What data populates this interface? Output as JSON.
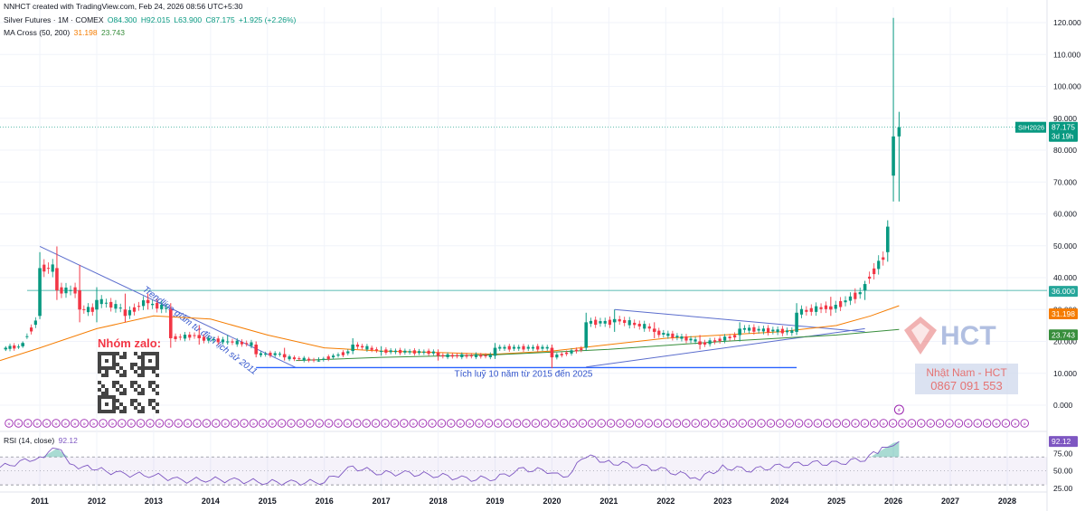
{
  "attribution": "NNHCT created with TradingView.com, Feb 24, 2026 08:56 UTC+5:30",
  "symbol_line": {
    "name": "Silver Futures · 1M · COMEX",
    "open": "O84.300",
    "high": "H92.015",
    "low": "L63.900",
    "close": "C87.175",
    "change": "+1.925 (+2.26%)"
  },
  "ma_line": {
    "name": "MA Cross (50, 200)",
    "ma50": "31.198",
    "ma200": "23.743"
  },
  "rsi_line": {
    "name": "RSI (14, close)",
    "value": "92.12"
  },
  "price_axis": {
    "ticks": [
      "120.000",
      "110.000",
      "100.000",
      "90.000",
      "80.000",
      "70.000",
      "60.000",
      "50.000",
      "40.000",
      "30.000",
      "20.000",
      "10.000",
      "0.000"
    ],
    "ticker_label": "SIH2026",
    "last_price": "87.175",
    "countdown": "3d 19h",
    "level_label": "36.000",
    "ma50_label": "31.198",
    "ma200_label": "23.743"
  },
  "rsi_axis": {
    "ticks": [
      "75.00",
      "50.00",
      "25.00"
    ],
    "value_label": "92.12"
  },
  "time_axis": [
    "2011",
    "2012",
    "2013",
    "2014",
    "2015",
    "2016",
    "2017",
    "2018",
    "2019",
    "2020",
    "2021",
    "2022",
    "2023",
    "2024",
    "2025",
    "2026",
    "2027",
    "2028"
  ],
  "annotations": {
    "trendline_text": "Trendline giảm từ đỉnh lịch sử 2011",
    "range_text": "Tích luỹ 10 năm từ 2015 đến 2025",
    "zalo_text": "Nhóm zalo:",
    "brand_name": "HCT",
    "contact_name": "Nhật Nam - HCT",
    "contact_phone": "0867 091 553"
  },
  "colors": {
    "up": "#089981",
    "down": "#f23645",
    "ma50": "#f57c00",
    "ma200": "#388e3c",
    "rsi": "#7e57c2",
    "level_line": "#26a69a",
    "annotation_blue": "#2962ff",
    "annotation_red": "#f23645"
  },
  "chart_data": {
    "type": "candlestick",
    "title": "Silver Futures · 1M · COMEX",
    "ylim": [
      0,
      122
    ],
    "x_range": [
      2010.3,
      2028.7
    ],
    "horizontal_level": 36,
    "series": [
      {
        "name": "Silver Futures",
        "ohlc_yearly_approx": [
          {
            "x": 2010.4,
            "o": 17.5,
            "h": 18.5,
            "l": 17,
            "c": 18
          },
          {
            "x": 2010.7,
            "o": 18.5,
            "h": 20,
            "l": 18,
            "c": 19.5
          },
          {
            "x": 2011.0,
            "o": 28,
            "h": 48,
            "l": 27,
            "c": 43
          },
          {
            "x": 2011.3,
            "o": 43,
            "h": 49.8,
            "l": 33,
            "c": 36
          },
          {
            "x": 2011.7,
            "o": 36,
            "h": 44,
            "l": 26,
            "c": 30
          },
          {
            "x": 2012.0,
            "o": 30,
            "h": 37,
            "l": 26,
            "c": 33
          },
          {
            "x": 2012.5,
            "o": 30,
            "h": 35,
            "l": 26,
            "c": 28
          },
          {
            "x": 2012.9,
            "o": 33,
            "h": 35,
            "l": 30,
            "c": 32
          },
          {
            "x": 2013.3,
            "o": 30,
            "h": 32,
            "l": 18,
            "c": 21
          },
          {
            "x": 2013.8,
            "o": 22,
            "h": 25,
            "l": 19,
            "c": 21
          },
          {
            "x": 2014.3,
            "o": 20,
            "h": 22,
            "l": 19,
            "c": 20
          },
          {
            "x": 2014.8,
            "o": 19,
            "h": 20,
            "l": 15,
            "c": 16
          },
          {
            "x": 2015.3,
            "o": 16,
            "h": 18,
            "l": 14,
            "c": 15
          },
          {
            "x": 2015.9,
            "o": 14,
            "h": 15,
            "l": 13.6,
            "c": 14
          },
          {
            "x": 2016.5,
            "o": 17,
            "h": 21,
            "l": 16,
            "c": 19
          },
          {
            "x": 2017.0,
            "o": 17,
            "h": 18.5,
            "l": 15.5,
            "c": 17
          },
          {
            "x": 2018.0,
            "o": 16.5,
            "h": 17.5,
            "l": 14,
            "c": 15.5
          },
          {
            "x": 2019.0,
            "o": 15.5,
            "h": 19.5,
            "l": 14.5,
            "c": 18
          },
          {
            "x": 2020.0,
            "o": 18,
            "h": 19,
            "l": 11.6,
            "c": 15
          },
          {
            "x": 2020.6,
            "o": 18,
            "h": 29,
            "l": 17,
            "c": 26
          },
          {
            "x": 2021.1,
            "o": 26,
            "h": 30,
            "l": 23,
            "c": 27
          },
          {
            "x": 2021.8,
            "o": 24,
            "h": 26,
            "l": 21,
            "c": 23
          },
          {
            "x": 2022.6,
            "o": 20,
            "h": 22,
            "l": 17.5,
            "c": 19
          },
          {
            "x": 2023.3,
            "o": 22,
            "h": 26,
            "l": 20,
            "c": 24
          },
          {
            "x": 2024.3,
            "o": 23,
            "h": 32,
            "l": 22,
            "c": 29
          },
          {
            "x": 2024.9,
            "o": 31,
            "h": 34,
            "l": 28,
            "c": 30
          },
          {
            "x": 2025.5,
            "o": 36,
            "h": 39,
            "l": 33,
            "c": 38
          },
          {
            "x": 2025.9,
            "o": 48,
            "h": 58,
            "l": 45,
            "c": 56
          },
          {
            "x": 2026.0,
            "o": 72,
            "h": 121.5,
            "l": 63.9,
            "c": 84.3
          },
          {
            "x": 2026.1,
            "o": 84.3,
            "h": 92.015,
            "l": 63.9,
            "c": 87.175
          }
        ]
      },
      {
        "name": "MA 50",
        "values": [
          [
            2010.3,
            14
          ],
          [
            2011.0,
            18
          ],
          [
            2012.0,
            24
          ],
          [
            2013.0,
            28
          ],
          [
            2014.0,
            27
          ],
          [
            2015.0,
            22
          ],
          [
            2016.0,
            18
          ],
          [
            2017.0,
            17
          ],
          [
            2018.0,
            16.5
          ],
          [
            2019.0,
            16
          ],
          [
            2020.0,
            17
          ],
          [
            2021.0,
            19
          ],
          [
            2022.0,
            21
          ],
          [
            2023.0,
            22
          ],
          [
            2024.0,
            23
          ],
          [
            2025.0,
            25
          ],
          [
            2025.6,
            28
          ],
          [
            2026.1,
            31.198
          ]
        ]
      },
      {
        "name": "MA 200",
        "values": [
          [
            2015.5,
            14
          ],
          [
            2017.0,
            15
          ],
          [
            2019.0,
            15.8
          ],
          [
            2021.0,
            17.5
          ],
          [
            2023.0,
            20
          ],
          [
            2025.0,
            22
          ],
          [
            2026.1,
            23.743
          ]
        ]
      }
    ],
    "rsi": {
      "name": "RSI (14, close)",
      "ylim": [
        25,
        100
      ],
      "bands": [
        30,
        70
      ],
      "last": 92.12,
      "values": [
        [
          2010.3,
          55
        ],
        [
          2011.0,
          70
        ],
        [
          2011.3,
          82
        ],
        [
          2011.6,
          58
        ],
        [
          2012.0,
          52
        ],
        [
          2012.5,
          45
        ],
        [
          2013.0,
          44
        ],
        [
          2013.5,
          36
        ],
        [
          2014.0,
          38
        ],
        [
          2014.5,
          36
        ],
        [
          2015.0,
          34
        ],
        [
          2015.5,
          33
        ],
        [
          2016.0,
          35
        ],
        [
          2016.5,
          55
        ],
        [
          2017.0,
          47
        ],
        [
          2017.5,
          46
        ],
        [
          2018.0,
          44
        ],
        [
          2018.5,
          38
        ],
        [
          2019.0,
          40
        ],
        [
          2019.5,
          52
        ],
        [
          2020.0,
          50
        ],
        [
          2020.2,
          38
        ],
        [
          2020.6,
          72
        ],
        [
          2021.0,
          62
        ],
        [
          2021.5,
          58
        ],
        [
          2022.0,
          50
        ],
        [
          2022.6,
          40
        ],
        [
          2023.0,
          55
        ],
        [
          2023.5,
          52
        ],
        [
          2024.0,
          56
        ],
        [
          2024.5,
          62
        ],
        [
          2025.0,
          60
        ],
        [
          2025.5,
          68
        ],
        [
          2025.8,
          80
        ],
        [
          2026.0,
          90
        ],
        [
          2026.1,
          92.12
        ]
      ]
    }
  }
}
